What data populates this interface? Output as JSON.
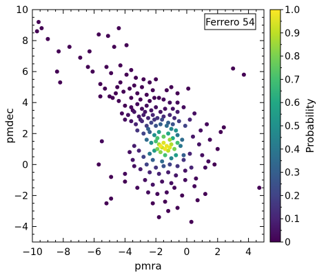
{
  "chart_data": {
    "type": "scatter",
    "title": "",
    "xlabel": "pmra",
    "ylabel": "pmdec",
    "xlim": [
      -10,
      5
    ],
    "ylim": [
      -5,
      10
    ],
    "xticks": [
      -10,
      -8,
      -6,
      -4,
      -2,
      0,
      2,
      4
    ],
    "yticks": [
      -4,
      -2,
      0,
      2,
      4,
      6,
      8,
      10
    ],
    "grid": false,
    "annotation": "Ferrero 54",
    "annotation_position": "top-right",
    "colorbar": {
      "label": "Probability",
      "colormap": "viridis",
      "range": [
        0,
        1
      ],
      "ticks": [
        0,
        0.1,
        0.2,
        0.3,
        0.4,
        0.5,
        0.6,
        0.7,
        0.8,
        0.9,
        1.0
      ],
      "tick_labels": [
        "0",
        "0.1",
        "0.2",
        "0.3",
        "0.4",
        "0.5",
        "0.6",
        "0.7",
        "0.8",
        "0.9",
        "1.0"
      ]
    },
    "points": [
      [
        -9.6,
        9.2,
        0.0
      ],
      [
        -9.4,
        8.8,
        0.0
      ],
      [
        -9.7,
        8.6,
        0.0
      ],
      [
        -9.0,
        8.1,
        0.0
      ],
      [
        -7.6,
        7.6,
        0.0
      ],
      [
        -8.3,
        7.3,
        0.0
      ],
      [
        -5.7,
        8.4,
        0.0
      ],
      [
        -5.1,
        8.3,
        0.0
      ],
      [
        -4.4,
        8.8,
        0.0
      ],
      [
        -4.7,
        7.6,
        0.0
      ],
      [
        -3.9,
        7.7,
        0.0
      ],
      [
        -6.3,
        7.3,
        0.0
      ],
      [
        -6.9,
        6.9,
        0.0
      ],
      [
        -8.4,
        6.0,
        0.0
      ],
      [
        -8.2,
        5.3,
        0.0
      ],
      [
        -6.4,
        6.3,
        0.0
      ],
      [
        -6.1,
        6.0,
        0.0
      ],
      [
        -5.2,
        6.3,
        0.0
      ],
      [
        -4.9,
        5.9,
        0.0
      ],
      [
        -4.3,
        6.4,
        0.0
      ],
      [
        -3.6,
        6.1,
        0.0
      ],
      [
        -3.9,
        5.8,
        0.0
      ],
      [
        -3.3,
        5.6,
        0.0
      ],
      [
        -2.8,
        5.5,
        0.0
      ],
      [
        -2.4,
        5.3,
        0.0
      ],
      [
        -2.0,
        5.5,
        0.0
      ],
      [
        -4.5,
        5.0,
        0.0
      ],
      [
        -5.6,
        5.2,
        0.0
      ],
      [
        -5.3,
        4.9,
        0.0
      ],
      [
        -4.1,
        4.7,
        0.0
      ],
      [
        -3.7,
        4.9,
        0.0
      ],
      [
        -3.2,
        4.6,
        0.0
      ],
      [
        -3.0,
        4.2,
        0.0
      ],
      [
        -2.6,
        4.5,
        0.0
      ],
      [
        -2.2,
        4.8,
        0.0
      ],
      [
        -1.8,
        4.3,
        0.0
      ],
      [
        -1.3,
        4.8,
        0.0
      ],
      [
        -1.0,
        5.0,
        0.0
      ],
      [
        -0.6,
        4.6,
        0.0
      ],
      [
        -1.5,
        4.2,
        0.02
      ],
      [
        -4.8,
        4.3,
        0.0
      ],
      [
        -5.6,
        4.4,
        0.0
      ],
      [
        -4.4,
        4.1,
        0.0
      ],
      [
        -4.0,
        3.8,
        0.0
      ],
      [
        -3.6,
        3.7,
        0.02
      ],
      [
        -3.2,
        3.9,
        0.02
      ],
      [
        -2.9,
        3.6,
        0.03
      ],
      [
        -2.6,
        3.8,
        0.03
      ],
      [
        -2.3,
        3.5,
        0.05
      ],
      [
        -2.0,
        3.7,
        0.04
      ],
      [
        -1.7,
        3.4,
        0.05
      ],
      [
        -1.4,
        3.6,
        0.04
      ],
      [
        -4.2,
        3.3,
        0.02
      ],
      [
        -3.8,
        3.2,
        0.04
      ],
      [
        -3.4,
        3.4,
        0.05
      ],
      [
        -3.1,
        3.1,
        0.06
      ],
      [
        -2.8,
        3.2,
        0.08
      ],
      [
        -2.5,
        3.0,
        0.1
      ],
      [
        -2.2,
        3.2,
        0.1
      ],
      [
        -1.9,
        3.0,
        0.15
      ],
      [
        -1.5,
        3.1,
        0.12
      ],
      [
        -1.1,
        3.2,
        0.1
      ],
      [
        -0.8,
        3.0,
        0.12
      ],
      [
        -0.6,
        3.4,
        0.08
      ],
      [
        -4.0,
        2.9,
        0.03
      ],
      [
        -3.6,
        2.8,
        0.06
      ],
      [
        -3.3,
        2.6,
        0.1
      ],
      [
        -2.9,
        2.8,
        0.12
      ],
      [
        -2.6,
        2.5,
        0.18
      ],
      [
        -2.3,
        2.7,
        0.2
      ],
      [
        -2.0,
        2.5,
        0.25
      ],
      [
        -1.7,
        2.6,
        0.3
      ],
      [
        -1.3,
        2.5,
        0.35
      ],
      [
        -0.9,
        2.6,
        0.25
      ],
      [
        -0.5,
        2.8,
        0.18
      ],
      [
        -0.1,
        2.5,
        0.2
      ],
      [
        -3.2,
        2.2,
        0.15
      ],
      [
        -2.8,
        2.0,
        0.2
      ],
      [
        -2.4,
        2.1,
        0.3
      ],
      [
        -2.1,
        1.9,
        0.5
      ],
      [
        -1.8,
        2.1,
        0.55
      ],
      [
        -1.5,
        1.8,
        0.75
      ],
      [
        -1.2,
        2.0,
        0.6
      ],
      [
        -0.9,
        1.7,
        0.6
      ],
      [
        -0.6,
        1.9,
        0.4
      ],
      [
        -0.3,
        1.6,
        0.35
      ],
      [
        -2.6,
        1.6,
        0.35
      ],
      [
        -2.3,
        1.4,
        0.5
      ],
      [
        -2.0,
        1.5,
        0.7
      ],
      [
        -1.8,
        1.3,
        0.85
      ],
      [
        -1.6,
        1.1,
        0.92
      ],
      [
        -1.5,
        1.4,
        0.95
      ],
      [
        -1.3,
        1.2,
        0.97
      ],
      [
        -1.2,
        0.9,
        0.9
      ],
      [
        -1.0,
        1.3,
        0.88
      ],
      [
        -0.8,
        1.0,
        0.8
      ],
      [
        -1.7,
        0.8,
        0.82
      ],
      [
        -1.4,
        0.6,
        0.7
      ],
      [
        -2.1,
        0.9,
        0.55
      ],
      [
        -2.4,
        0.7,
        0.4
      ],
      [
        -0.7,
        0.6,
        0.55
      ],
      [
        -1.0,
        0.4,
        0.45
      ],
      [
        -1.6,
        0.2,
        0.35
      ],
      [
        -2.2,
        0.3,
        0.3
      ],
      [
        -2.8,
        0.5,
        0.2
      ],
      [
        -3.1,
        0.9,
        0.1
      ],
      [
        -0.4,
        1.2,
        0.4
      ],
      [
        -0.2,
        0.6,
        0.3
      ],
      [
        -2.6,
        0.0,
        0.2
      ],
      [
        -2.0,
        -0.2,
        0.15
      ],
      [
        -1.5,
        -0.1,
        0.25
      ],
      [
        -1.1,
        0.0,
        0.2
      ],
      [
        -0.6,
        -0.1,
        0.15
      ],
      [
        -0.2,
        0.3,
        0.15
      ],
      [
        0.2,
        0.7,
        0.1
      ],
      [
        0.3,
        -0.2,
        0.1
      ],
      [
        -3.4,
        1.2,
        0.08
      ],
      [
        -3.5,
        0.3,
        0.06
      ],
      [
        -3.0,
        -0.3,
        0.08
      ],
      [
        -2.4,
        -0.5,
        0.1
      ],
      [
        -1.8,
        -0.6,
        0.1
      ],
      [
        -1.2,
        -0.5,
        0.08
      ],
      [
        -0.7,
        -0.7,
        0.06
      ],
      [
        -0.1,
        -0.4,
        0.05
      ],
      [
        -5.5,
        1.5,
        0.02
      ],
      [
        -3.7,
        0.8,
        0.04
      ],
      [
        -3.4,
        -0.1,
        0.04
      ],
      [
        -4.0,
        -0.6,
        0.02
      ],
      [
        -2.7,
        -1.0,
        0.04
      ],
      [
        -2.2,
        -1.3,
        0.05
      ],
      [
        -1.6,
        -1.1,
        0.04
      ],
      [
        -1.0,
        -1.2,
        0.04
      ],
      [
        -0.1,
        -1.0,
        0.03
      ],
      [
        0.6,
        -0.9,
        0.02
      ],
      [
        -4.9,
        -0.8,
        0.0
      ],
      [
        -5.7,
        0.0,
        0.0
      ],
      [
        -3.2,
        -1.5,
        0.02
      ],
      [
        -2.5,
        -1.8,
        0.03
      ],
      [
        -1.9,
        -1.9,
        0.02
      ],
      [
        -1.3,
        -1.8,
        0.02
      ],
      [
        -0.8,
        -1.5,
        0.02
      ],
      [
        0.5,
        -1.4,
        0.02
      ],
      [
        1.2,
        -0.2,
        0.03
      ],
      [
        1.4,
        0.2,
        0.02
      ],
      [
        1.8,
        0.0,
        0.0
      ],
      [
        1.0,
        0.6,
        0.04
      ],
      [
        0.8,
        1.3,
        0.05
      ],
      [
        0.4,
        1.8,
        0.06
      ],
      [
        0.9,
        2.2,
        0.04
      ],
      [
        1.5,
        1.6,
        0.02
      ],
      [
        2.0,
        1.0,
        0.0
      ],
      [
        2.4,
        2.4,
        0.0
      ],
      [
        2.2,
        2.1,
        0.0
      ],
      [
        1.3,
        2.6,
        0.02
      ],
      [
        0.2,
        2.9,
        0.1
      ],
      [
        0.5,
        3.3,
        0.04
      ],
      [
        -0.2,
        3.7,
        0.03
      ],
      [
        -0.6,
        4.0,
        0.02
      ],
      [
        -1.1,
        4.0,
        0.03
      ],
      [
        -0.9,
        3.6,
        0.05
      ],
      [
        3.0,
        6.2,
        0.0
      ],
      [
        3.7,
        5.8,
        0.0
      ],
      [
        0.1,
        4.9,
        0.0
      ],
      [
        4.7,
        -1.5,
        0.0
      ],
      [
        1.2,
        -1.9,
        0.0
      ],
      [
        0.7,
        -2.3,
        0.0
      ],
      [
        -0.6,
        -2.8,
        0.0
      ],
      [
        -1.4,
        -2.4,
        0.0
      ],
      [
        -1.8,
        -3.4,
        0.0
      ],
      [
        -1.2,
        -3.0,
        0.0
      ],
      [
        0.3,
        -3.7,
        0.0
      ],
      [
        -5.2,
        -2.5,
        0.0
      ],
      [
        -4.9,
        -2.2,
        0.0
      ],
      [
        -2.2,
        -2.5,
        0.0
      ],
      [
        -0.3,
        -2.0,
        0.0
      ],
      [
        -4.0,
        -1.1,
        0.0
      ],
      [
        -3.6,
        4.3,
        0.0
      ],
      [
        -3.4,
        5.1,
        0.0
      ],
      [
        -2.9,
        5.0,
        0.0
      ],
      [
        -2.4,
        4.1,
        0.0
      ],
      [
        -2.1,
        4.3,
        0.0
      ],
      [
        -4.6,
        4.6,
        0.0
      ],
      [
        -5.0,
        4.4,
        0.0
      ],
      [
        -4.3,
        5.3,
        0.0
      ],
      [
        -3.5,
        3.5,
        0.02
      ],
      [
        -2.7,
        3.4,
        0.05
      ],
      [
        -3.0,
        2.9,
        0.08
      ],
      [
        -2.1,
        2.9,
        0.15
      ],
      [
        -1.6,
        2.9,
        0.22
      ],
      [
        -1.2,
        2.7,
        0.3
      ],
      [
        -2.5,
        2.3,
        0.3
      ],
      [
        -1.0,
        2.3,
        0.45
      ],
      [
        -0.7,
        2.2,
        0.5
      ],
      [
        -1.9,
        1.7,
        0.7
      ],
      [
        -1.1,
        1.6,
        0.85
      ],
      [
        -0.6,
        1.4,
        0.7
      ],
      [
        -1.4,
        1.0,
        0.98
      ],
      [
        -1.7,
        1.2,
        0.99
      ],
      [
        -1.1,
        1.1,
        0.96
      ],
      [
        -1.9,
        1.0,
        0.8
      ]
    ]
  }
}
